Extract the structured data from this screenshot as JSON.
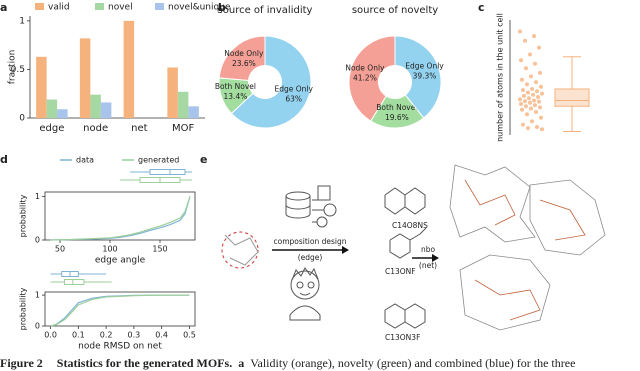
{
  "chart_data": [
    {
      "type": "bar",
      "label": "a",
      "ylabel": "fraction",
      "categories": [
        "edge",
        "node",
        "net",
        "MOF"
      ],
      "series": [
        {
          "name": "valid",
          "color": "#f6b27d",
          "values": [
            0.63,
            0.82,
            1.0,
            0.52
          ]
        },
        {
          "name": "novel",
          "color": "#a6d8a4",
          "values": [
            0.19,
            0.24,
            null,
            0.27
          ]
        },
        {
          "name": "novel&unique",
          "color": "#a9c4ec",
          "values": [
            0.09,
            0.16,
            null,
            0.12
          ]
        }
      ],
      "ylim": [
        0,
        1.05
      ],
      "yticks": [
        0,
        0.5,
        1
      ]
    },
    {
      "type": "pie",
      "label": "b",
      "title": "source of invalidity",
      "categories": [
        "Node Only",
        "Both Novel",
        "Edge Only"
      ],
      "values": [
        23.6,
        13.4,
        63
      ],
      "value_labels": [
        "23.6%",
        "13.4%",
        "63%"
      ],
      "colors": [
        "#f5a096",
        "#a3dea0",
        "#94d3f0"
      ]
    },
    {
      "type": "pie",
      "title": "source of novelty",
      "categories": [
        "Node Only",
        "Both Novel",
        "Edge Only"
      ],
      "values": [
        41.2,
        19.6,
        39.3
      ],
      "value_labels": [
        "41.2%",
        "19.6%",
        "39.3%"
      ],
      "colors": [
        "#f5a096",
        "#a3dea0",
        "#94d3f0"
      ]
    },
    {
      "type": "box",
      "label": "c",
      "ylabel": "number of atoms in the unit cell",
      "color": "#f6b27d",
      "ylim": [
        0,
        1000
      ],
      "box": {
        "min": 30,
        "q1": 250,
        "median": 300,
        "q3": 400,
        "max": 680
      },
      "points": [
        900,
        860,
        820,
        760,
        700,
        650,
        620,
        580,
        540,
        510,
        480,
        460,
        440,
        420,
        400,
        390,
        380,
        370,
        360,
        350,
        340,
        330,
        320,
        310,
        300,
        295,
        290,
        280,
        270,
        260,
        250,
        240,
        230,
        220,
        200,
        180,
        150,
        120,
        90,
        70,
        60,
        50
      ]
    },
    {
      "type": "line",
      "label": "d",
      "xlabel": "edge angle",
      "ylabel": "probability",
      "legend": "top",
      "x": [
        40,
        60,
        80,
        100,
        110,
        120,
        130,
        140,
        150,
        160,
        170,
        175,
        180
      ],
      "series": [
        {
          "name": "data",
          "color": "#7fb3d5",
          "values": [
            0,
            0.01,
            0.02,
            0.04,
            0.06,
            0.1,
            0.15,
            0.22,
            0.28,
            0.35,
            0.45,
            0.6,
            1.0
          ],
          "box": {
            "min": 120,
            "q1": 140,
            "median": 160,
            "q3": 175,
            "max": 182
          }
        },
        {
          "name": "generated",
          "color": "#9ccf9a",
          "values": [
            0,
            0.01,
            0.03,
            0.05,
            0.08,
            0.12,
            0.18,
            0.25,
            0.32,
            0.4,
            0.5,
            0.65,
            1.0
          ],
          "box": {
            "min": 110,
            "q1": 130,
            "median": 150,
            "q3": 170,
            "max": 182
          }
        }
      ],
      "xlim": [
        35,
        185
      ],
      "xticks": [
        50,
        100,
        150
      ],
      "ylim": [
        0,
        1.1
      ],
      "yticks": [
        0,
        1
      ]
    },
    {
      "type": "line",
      "xlabel": "node RMSD on net",
      "ylabel": "probability",
      "x": [
        0,
        0.02,
        0.05,
        0.08,
        0.1,
        0.15,
        0.2,
        0.3,
        0.4,
        0.5
      ],
      "series": [
        {
          "color": "#7fb3d5",
          "values": [
            0,
            0.05,
            0.25,
            0.55,
            0.75,
            0.9,
            0.96,
            0.99,
            1,
            1
          ],
          "box": {
            "min": 0,
            "q1": 0.04,
            "median": 0.07,
            "q3": 0.1,
            "max": 0.2
          }
        },
        {
          "color": "#9ccf9a",
          "values": [
            0,
            0.04,
            0.2,
            0.48,
            0.68,
            0.86,
            0.94,
            0.98,
            1,
            1
          ],
          "box": {
            "min": 0,
            "q1": 0.05,
            "median": 0.08,
            "q3": 0.12,
            "max": 0.22
          }
        }
      ],
      "xlim": [
        -0.02,
        0.52
      ],
      "xticks": [
        {
          "value": 0,
          "label": "0.0"
        },
        {
          "value": 0.1,
          "label": "0.1"
        },
        {
          "value": 0.2,
          "label": "0.2"
        },
        {
          "value": 0.3,
          "label": "0.3"
        },
        {
          "value": 0.4,
          "label": "0.4"
        },
        {
          "value": 0.5,
          "label": "0.5"
        }
      ],
      "ylim": [
        0,
        1.1
      ],
      "yticks": [
        0,
        1
      ]
    }
  ],
  "diagram": {
    "label": "e",
    "composition": "composition design",
    "edge_note": "(edge)",
    "formulas": [
      "C14O8NS",
      "C13ONF",
      "C13ON3F"
    ],
    "topology": "nbo",
    "net_note": "(net)"
  },
  "caption": {
    "label": "Figure 2",
    "title": "Statistics for the generated MOFs.",
    "panel": "a",
    "text": "Validity (orange), novelty (green) and combined (blue) for the three"
  }
}
